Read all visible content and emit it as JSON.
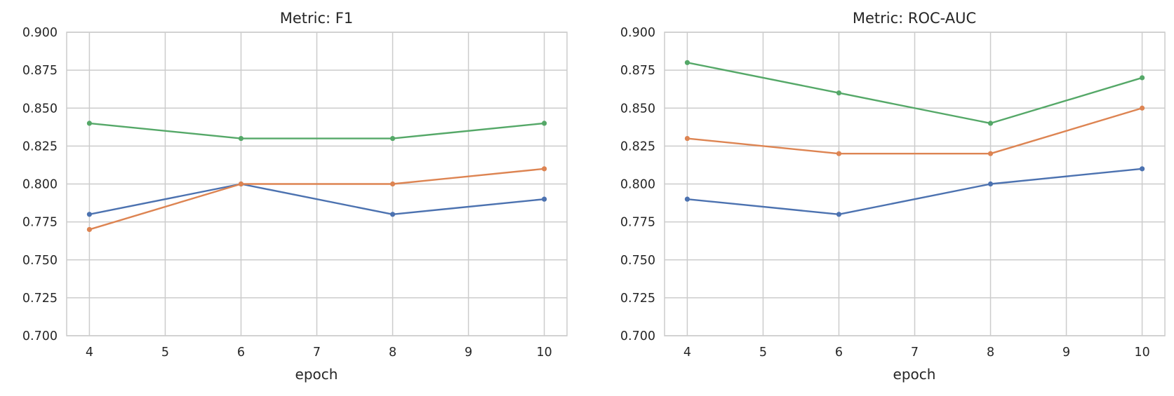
{
  "figure": {
    "background": "#ffffff",
    "text_color": "#262626",
    "grid_color": "#cccccc"
  },
  "chart_data": [
    {
      "type": "line",
      "title": "Metric: F1",
      "xlabel": "epoch",
      "ylabel": "",
      "grid": true,
      "legend_position": "none",
      "x": [
        4,
        6,
        8,
        10
      ],
      "xlim": [
        3.7,
        10.3
      ],
      "xticks": [
        4,
        5,
        6,
        7,
        8,
        9,
        10
      ],
      "xtick_labels": [
        "4",
        "5",
        "6",
        "7",
        "8",
        "9",
        "10"
      ],
      "ylim": [
        0.7,
        0.9
      ],
      "yticks": [
        0.7,
        0.725,
        0.75,
        0.775,
        0.8,
        0.825,
        0.85,
        0.875,
        0.9
      ],
      "ytick_labels": [
        "0.700",
        "0.725",
        "0.750",
        "0.775",
        "0.800",
        "0.825",
        "0.850",
        "0.875",
        "0.900"
      ],
      "series": [
        {
          "name": "blue",
          "color": "#4C72B0",
          "values": [
            0.78,
            0.8,
            0.78,
            0.79
          ]
        },
        {
          "name": "orange",
          "color": "#DD8452",
          "values": [
            0.77,
            0.8,
            0.8,
            0.81
          ]
        },
        {
          "name": "green",
          "color": "#55A868",
          "values": [
            0.84,
            0.83,
            0.83,
            0.84
          ]
        }
      ]
    },
    {
      "type": "line",
      "title": "Metric: ROC-AUC",
      "xlabel": "epoch",
      "ylabel": "",
      "grid": true,
      "legend_position": "none",
      "x": [
        4,
        6,
        8,
        10
      ],
      "xlim": [
        3.7,
        10.3
      ],
      "xticks": [
        4,
        5,
        6,
        7,
        8,
        9,
        10
      ],
      "xtick_labels": [
        "4",
        "5",
        "6",
        "7",
        "8",
        "9",
        "10"
      ],
      "ylim": [
        0.7,
        0.9
      ],
      "yticks": [
        0.7,
        0.725,
        0.75,
        0.775,
        0.8,
        0.825,
        0.85,
        0.875,
        0.9
      ],
      "ytick_labels": [
        "0.700",
        "0.725",
        "0.750",
        "0.775",
        "0.800",
        "0.825",
        "0.850",
        "0.875",
        "0.900"
      ],
      "series": [
        {
          "name": "blue",
          "color": "#4C72B0",
          "values": [
            0.79,
            0.78,
            0.8,
            0.81
          ]
        },
        {
          "name": "orange",
          "color": "#DD8452",
          "values": [
            0.83,
            0.82,
            0.82,
            0.85
          ]
        },
        {
          "name": "green",
          "color": "#55A868",
          "values": [
            0.88,
            0.86,
            0.84,
            0.87
          ]
        }
      ]
    }
  ]
}
